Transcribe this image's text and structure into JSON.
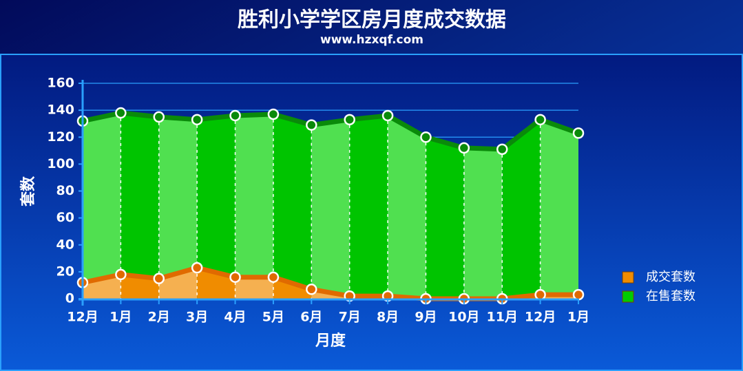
{
  "chart_data": {
    "type": "area",
    "title": "胜利小学学区房月度成交数据",
    "subtitle": "www.hzxqf.com",
    "x_label": "月度",
    "y_label": "套数",
    "categories": [
      "12月",
      "1月",
      "2月",
      "3月",
      "4月",
      "5月",
      "6月",
      "7月",
      "8月",
      "9月",
      "10月",
      "11月",
      "12月",
      "1月"
    ],
    "series": [
      {
        "name": "在售套数",
        "color": "#00cc00",
        "values": [
          132,
          138,
          135,
          133,
          136,
          137,
          129,
          133,
          136,
          120,
          112,
          111,
          133,
          123
        ]
      },
      {
        "name": "成交套数",
        "color": "#f08c00",
        "values": [
          12,
          18,
          15,
          23,
          16,
          16,
          7,
          2,
          2,
          0,
          0,
          0,
          3,
          3
        ]
      }
    ],
    "ylim": [
      0,
      160
    ],
    "yticks": [
      0,
      20,
      40,
      60,
      80,
      100,
      120,
      140,
      160
    ],
    "grid": true,
    "legend": "right"
  }
}
